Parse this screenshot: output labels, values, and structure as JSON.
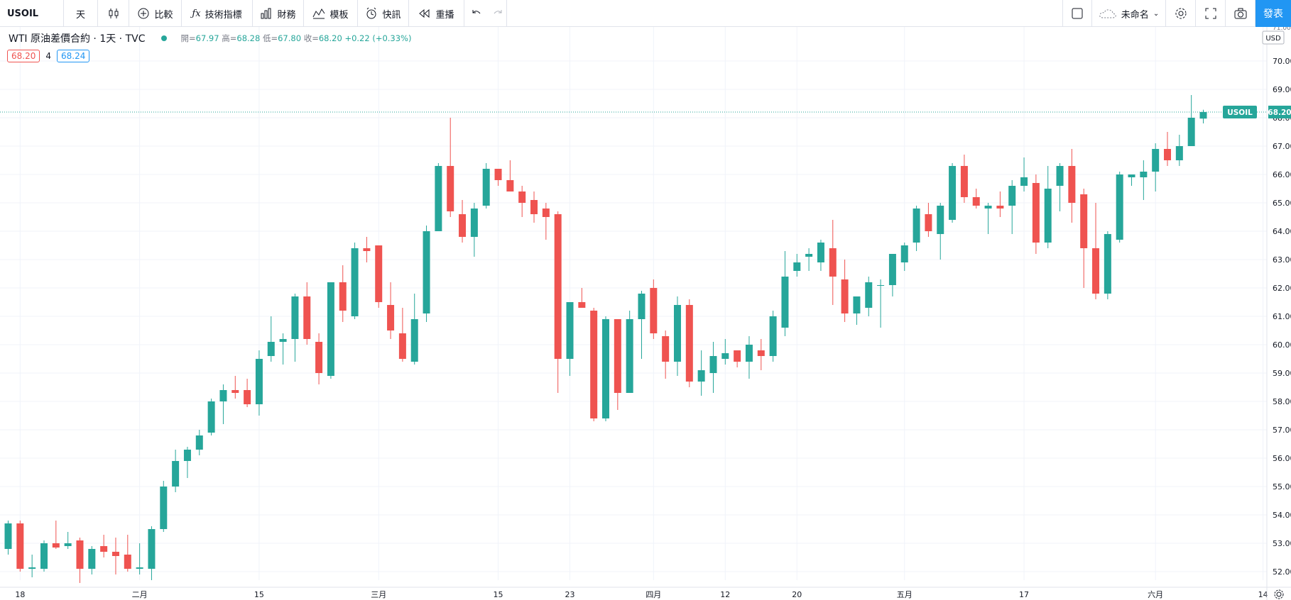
{
  "toolbar": {
    "symbol": "USOIL",
    "interval": "天",
    "compare_label": "比較",
    "indicators_label": "技術指標",
    "financials_label": "財務",
    "templates_label": "模板",
    "alerts_label": "快訊",
    "replay_label": "重播",
    "layout_name": "未命名",
    "publish_label": "發表"
  },
  "legend": {
    "title": "WTI 原油差價合約 · 1天 · TVC",
    "open_label": "開=",
    "open": "67.97",
    "high_label": "高=",
    "high": "68.28",
    "low_label": "低=",
    "low": "67.80",
    "close_label": "收=",
    "close": "68.20",
    "change": "+0.22 (+0.33%)"
  },
  "trade": {
    "sell": "68.20",
    "qty": "4",
    "buy": "68.24"
  },
  "price_scale": {
    "currency": "USD",
    "last_symbol": "USOIL",
    "last_price": "68.20",
    "top_partial": "71.00"
  },
  "colors": {
    "up": "#26a69a",
    "down": "#ef5350",
    "accent": "#2196f3",
    "grid": "#f0f3fa"
  },
  "chart_data": {
    "type": "candlestick",
    "ylim": [
      51.7,
      71.2
    ],
    "y_ticks": [
      52,
      53,
      54,
      55,
      56,
      57,
      58,
      59,
      60,
      61,
      62,
      63,
      64,
      65,
      66,
      67,
      68,
      69,
      70
    ],
    "x_labels": [
      {
        "label": "18",
        "index": 1
      },
      {
        "label": "二月",
        "index": 11
      },
      {
        "label": "15",
        "index": 21
      },
      {
        "label": "三月",
        "index": 31
      },
      {
        "label": "15",
        "index": 41
      },
      {
        "label": "23",
        "index": 47
      },
      {
        "label": "四月",
        "index": 54
      },
      {
        "label": "12",
        "index": 60
      },
      {
        "label": "20",
        "index": 66
      },
      {
        "label": "五月",
        "index": 75
      },
      {
        "label": "17",
        "index": 85
      },
      {
        "label": "六月",
        "index": 96
      },
      {
        "label": "14",
        "index": 105
      }
    ],
    "last_price": 68.2,
    "candles": [
      [
        52.8,
        53.8,
        52.6,
        53.7
      ],
      [
        53.7,
        53.8,
        52.0,
        52.1
      ],
      [
        52.1,
        52.6,
        51.8,
        52.15
      ],
      [
        52.1,
        53.1,
        52.0,
        53.0
      ],
      [
        53.0,
        53.8,
        52.8,
        52.85
      ],
      [
        52.9,
        53.4,
        52.8,
        53.0
      ],
      [
        53.1,
        53.2,
        51.6,
        52.1
      ],
      [
        52.1,
        52.9,
        51.9,
        52.8
      ],
      [
        52.9,
        53.3,
        52.5,
        52.7
      ],
      [
        52.7,
        53.2,
        51.9,
        52.55
      ],
      [
        52.6,
        53.3,
        52.0,
        52.1
      ],
      [
        52.1,
        53.0,
        51.9,
        52.15
      ],
      [
        52.1,
        53.6,
        51.7,
        53.5
      ],
      [
        53.5,
        55.2,
        53.4,
        55.0
      ],
      [
        55.0,
        56.3,
        54.8,
        55.9
      ],
      [
        55.9,
        56.4,
        55.3,
        56.3
      ],
      [
        56.3,
        57.0,
        56.1,
        56.8
      ],
      [
        56.9,
        58.1,
        56.8,
        58.0
      ],
      [
        58.0,
        58.6,
        57.2,
        58.4
      ],
      [
        58.4,
        58.9,
        58.1,
        58.3
      ],
      [
        58.4,
        58.8,
        57.8,
        57.9
      ],
      [
        57.9,
        59.8,
        57.5,
        59.5
      ],
      [
        59.6,
        61.0,
        59.4,
        60.1
      ],
      [
        60.1,
        60.4,
        59.3,
        60.2
      ],
      [
        60.2,
        61.8,
        59.4,
        61.7
      ],
      [
        61.7,
        62.2,
        60.0,
        60.2
      ],
      [
        60.1,
        60.4,
        58.6,
        59.0
      ],
      [
        58.9,
        62.2,
        58.8,
        62.2
      ],
      [
        62.2,
        62.8,
        60.8,
        61.2
      ],
      [
        61.0,
        63.6,
        60.9,
        63.4
      ],
      [
        63.4,
        63.8,
        62.9,
        63.3
      ],
      [
        63.5,
        63.5,
        61.3,
        61.5
      ],
      [
        61.4,
        62.2,
        60.2,
        60.5
      ],
      [
        60.4,
        61.3,
        59.4,
        59.5
      ],
      [
        59.4,
        61.8,
        59.3,
        60.9
      ],
      [
        61.1,
        64.2,
        60.8,
        64.0
      ],
      [
        64.0,
        66.4,
        64.0,
        66.3
      ],
      [
        66.3,
        68.0,
        64.5,
        64.7
      ],
      [
        64.6,
        65.1,
        63.6,
        63.8
      ],
      [
        63.8,
        65.0,
        63.1,
        64.8
      ],
      [
        64.9,
        66.4,
        64.8,
        66.2
      ],
      [
        66.2,
        66.1,
        65.6,
        65.8
      ],
      [
        65.8,
        66.5,
        65.4,
        65.4
      ],
      [
        65.4,
        65.6,
        64.5,
        65.0
      ],
      [
        65.1,
        65.4,
        64.3,
        64.6
      ],
      [
        64.8,
        65.0,
        63.7,
        64.5
      ],
      [
        64.6,
        64.7,
        58.3,
        59.5
      ],
      [
        59.5,
        61.4,
        58.9,
        61.5
      ],
      [
        61.5,
        62.0,
        61.3,
        61.3
      ],
      [
        61.2,
        61.3,
        57.3,
        57.4
      ],
      [
        57.4,
        61.0,
        57.3,
        60.9
      ],
      [
        60.9,
        60.9,
        57.7,
        58.3
      ],
      [
        58.3,
        61.2,
        58.3,
        60.9
      ],
      [
        60.9,
        61.9,
        59.5,
        61.8
      ],
      [
        62.0,
        62.3,
        60.2,
        60.4
      ],
      [
        60.3,
        60.5,
        58.8,
        59.4
      ],
      [
        59.4,
        61.7,
        58.9,
        61.4
      ],
      [
        61.4,
        61.6,
        58.5,
        58.7
      ],
      [
        58.7,
        59.8,
        58.2,
        59.1
      ],
      [
        59.0,
        60.1,
        58.3,
        59.6
      ],
      [
        59.5,
        60.2,
        59.3,
        59.7
      ],
      [
        59.8,
        59.8,
        59.2,
        59.4
      ],
      [
        59.4,
        60.3,
        58.8,
        60.0
      ],
      [
        59.8,
        60.2,
        59.1,
        59.6
      ],
      [
        59.6,
        61.2,
        59.4,
        61.0
      ],
      [
        60.6,
        63.3,
        60.3,
        62.4
      ],
      [
        62.6,
        63.2,
        62.4,
        62.9
      ],
      [
        63.1,
        63.4,
        62.6,
        63.2
      ],
      [
        62.9,
        63.7,
        62.6,
        63.6
      ],
      [
        63.4,
        64.4,
        61.4,
        62.4
      ],
      [
        62.3,
        63.0,
        60.8,
        61.1
      ],
      [
        61.1,
        61.6,
        60.7,
        61.7
      ],
      [
        61.3,
        62.4,
        61.0,
        62.2
      ],
      [
        62.1,
        62.3,
        60.6,
        62.1
      ],
      [
        62.1,
        63.1,
        61.7,
        63.2
      ],
      [
        62.9,
        63.6,
        62.6,
        63.5
      ],
      [
        63.6,
        64.9,
        63.3,
        64.8
      ],
      [
        64.6,
        65.0,
        63.8,
        64.0
      ],
      [
        63.9,
        65.0,
        63.0,
        64.9
      ],
      [
        64.4,
        66.4,
        64.3,
        66.3
      ],
      [
        66.3,
        66.7,
        65.0,
        65.2
      ],
      [
        65.2,
        65.5,
        64.8,
        64.9
      ],
      [
        64.8,
        65.0,
        63.9,
        64.9
      ],
      [
        64.9,
        65.4,
        64.5,
        64.8
      ],
      [
        64.9,
        65.8,
        63.9,
        65.6
      ],
      [
        65.6,
        66.6,
        65.4,
        65.9
      ],
      [
        65.7,
        66.0,
        63.2,
        63.6
      ],
      [
        63.6,
        66.3,
        63.4,
        65.5
      ],
      [
        65.6,
        66.4,
        64.7,
        66.3
      ],
      [
        66.3,
        66.9,
        64.3,
        65.0
      ],
      [
        65.3,
        65.5,
        62.0,
        63.4
      ],
      [
        63.4,
        65.0,
        61.6,
        61.8
      ],
      [
        61.8,
        64.0,
        61.6,
        63.9
      ],
      [
        63.7,
        66.1,
        63.6,
        66.0
      ],
      [
        65.9,
        66.0,
        65.6,
        66.0
      ],
      [
        65.9,
        66.5,
        65.1,
        66.1
      ],
      [
        66.1,
        67.1,
        65.4,
        66.9
      ],
      [
        66.9,
        67.5,
        66.3,
        66.5
      ],
      [
        66.5,
        67.4,
        66.3,
        67.0
      ],
      [
        67.0,
        68.8,
        67.1,
        68.0
      ],
      [
        67.97,
        68.28,
        67.8,
        68.2
      ]
    ]
  }
}
